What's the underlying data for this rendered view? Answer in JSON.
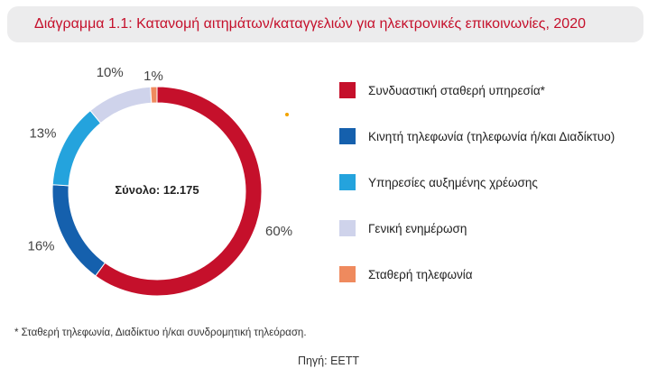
{
  "title": "Διάγραμμα 1.1: Κατανομή αιτημάτων/καταγγελιών για ηλεκτρονικές επικοινωνίες, 2020",
  "chart_data": {
    "type": "pie",
    "variant": "donut",
    "center_label": "Σύνολο: 12.175",
    "legend_position": "right",
    "slices": [
      {
        "label": "Συνδυαστική σταθερή υπηρεσία*",
        "value": 60,
        "display": "60%",
        "color": "#c5102b"
      },
      {
        "label": "Κινητή τηλεφωνία (τηλεφωνία ή/και Διαδίκτυο)",
        "value": 16,
        "display": "16%",
        "color": "#1560ad"
      },
      {
        "label": "Υπηρεσίες αυξημένης χρέωσης",
        "value": 13,
        "display": "13%",
        "color": "#24a3dd"
      },
      {
        "label": "Γενική ενημέρωση",
        "value": 10,
        "display": "10%",
        "color": "#cfd3eb"
      },
      {
        "label": "Σταθερή τηλεφωνία",
        "value": 1,
        "display": "1%",
        "color": "#ef8a5e"
      }
    ]
  },
  "footnote": "* Σταθερή τηλεφωνία, Διαδίκτυο ή/και συνδρομητική τηλεόραση.",
  "source": "Πηγή: ΕΕΤΤ"
}
